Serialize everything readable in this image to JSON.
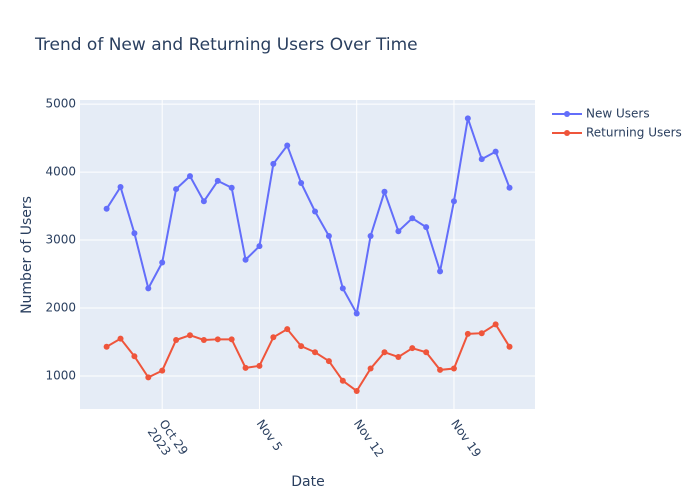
{
  "chart_data": {
    "type": "line",
    "title": "Trend of New and Returning Users Over Time",
    "xlabel": "Date",
    "ylabel": "Number of Users",
    "x": [
      "2023-10-25",
      "2023-10-26",
      "2023-10-27",
      "2023-10-28",
      "2023-10-29",
      "2023-10-30",
      "2023-10-31",
      "2023-11-01",
      "2023-11-02",
      "2023-11-03",
      "2023-11-04",
      "2023-11-05",
      "2023-11-06",
      "2023-11-07",
      "2023-11-08",
      "2023-11-09",
      "2023-11-10",
      "2023-11-11",
      "2023-11-12",
      "2023-11-13",
      "2023-11-14",
      "2023-11-15",
      "2023-11-16",
      "2023-11-17",
      "2023-11-18",
      "2023-11-19",
      "2023-11-20",
      "2023-11-21",
      "2023-11-22",
      "2023-11-23"
    ],
    "series": [
      {
        "name": "New Users",
        "color": "#636efa",
        "values": [
          3460,
          3780,
          3100,
          2290,
          2670,
          3750,
          3940,
          3570,
          3870,
          3770,
          2710,
          2910,
          4120,
          4390,
          3840,
          3420,
          3060,
          2290,
          1920,
          3060,
          3710,
          3130,
          3320,
          3190,
          2540,
          3570,
          4790,
          4190,
          4300,
          3770
        ]
      },
      {
        "name": "Returning Users",
        "color": "#EF553B",
        "values": [
          1430,
          1550,
          1290,
          980,
          1080,
          1530,
          1600,
          1530,
          1540,
          1540,
          1120,
          1150,
          1570,
          1690,
          1440,
          1350,
          1220,
          930,
          780,
          1110,
          1350,
          1280,
          1410,
          1350,
          1090,
          1110,
          1620,
          1630,
          1760,
          1430
        ]
      }
    ],
    "xlim": [
      "2023-10-23T02:00:00Z",
      "2023-11-24T20:00:00Z"
    ],
    "xticks": [
      {
        "value": "2023-10-29",
        "label": "Oct 29\n2023"
      },
      {
        "value": "2023-11-05",
        "label": "Nov 5"
      },
      {
        "value": "2023-11-12",
        "label": "Nov 12"
      },
      {
        "value": "2023-11-19",
        "label": "Nov 19"
      }
    ],
    "ylim": [
      515,
      5060
    ],
    "yticks": [
      1000,
      2000,
      3000,
      4000,
      5000
    ],
    "grid": true,
    "legend": "top-right"
  }
}
